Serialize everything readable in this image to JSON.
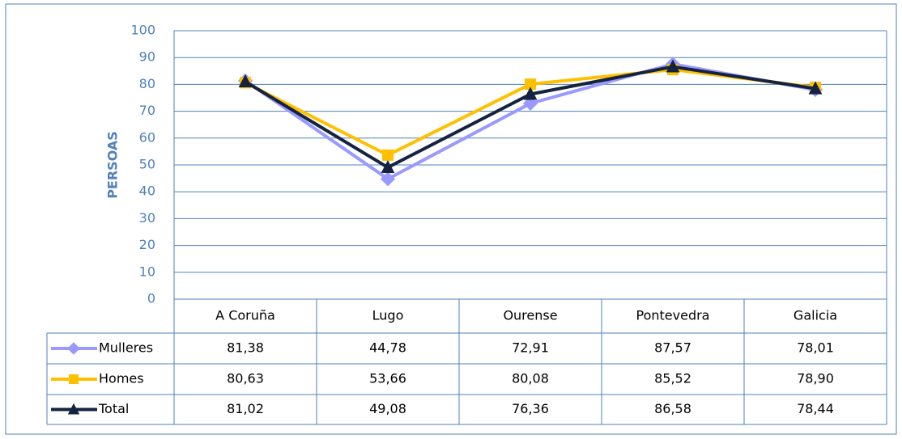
{
  "chart_data": {
    "type": "line",
    "y_label": "PERSOAS",
    "categories": [
      "A Coruña",
      "Lugo",
      "Ourense",
      "Pontevedra",
      "Galicia"
    ],
    "series": [
      {
        "name": "Mulleres",
        "color": "#9999ff",
        "marker": "diamond",
        "values": [
          81.38,
          44.78,
          72.91,
          87.57,
          78.01
        ],
        "value_labels": [
          "81,38",
          "44,78",
          "72,91",
          "87,57",
          "78,01"
        ]
      },
      {
        "name": "Homes",
        "color": "#ffc000",
        "marker": "square",
        "values": [
          80.63,
          53.66,
          80.08,
          85.52,
          78.9
        ],
        "value_labels": [
          "80,63",
          "53,66",
          "80,08",
          "85,52",
          "78,90"
        ]
      },
      {
        "name": "Total",
        "color": "#14233f",
        "marker": "triangle",
        "values": [
          81.02,
          49.08,
          76.36,
          86.58,
          78.44
        ],
        "value_labels": [
          "81,02",
          "49,08",
          "76,36",
          "86,58",
          "78,44"
        ]
      }
    ],
    "ylim": [
      0,
      100
    ],
    "yticks": [
      0,
      10,
      20,
      30,
      40,
      50,
      60,
      70,
      80,
      90,
      100
    ],
    "grid": true
  }
}
